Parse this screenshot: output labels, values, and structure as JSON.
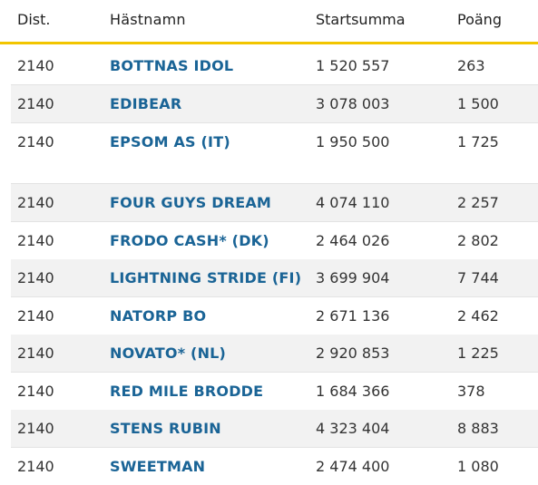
{
  "headers": {
    "dist": "Dist.",
    "name": "Hästnamn",
    "sum": "Startsumma",
    "points": "Poäng"
  },
  "rows": [
    {
      "dist": "2140",
      "name": "BOTTNAS IDOL",
      "sum": "1 520 557",
      "points": "263"
    },
    {
      "dist": "2140",
      "name": "EDIBEAR",
      "sum": "3 078 003",
      "points": "1 500"
    },
    {
      "dist": "2140",
      "name": "EPSOM AS (IT)",
      "sum": "1 950 500",
      "points": "1 725"
    },
    {
      "dist": "2140",
      "name": "FOUR GUYS DREAM",
      "sum": "4 074 110",
      "points": "2 257"
    },
    {
      "dist": "2140",
      "name": "FRODO CASH* (DK)",
      "sum": "2 464 026",
      "points": "2 802"
    },
    {
      "dist": "2140",
      "name": "LIGHTNING STRIDE (FI)",
      "sum": "3 699 904",
      "points": "7 744"
    },
    {
      "dist": "2140",
      "name": "NATORP BO",
      "sum": "2 671 136",
      "points": "2 462"
    },
    {
      "dist": "2140",
      "name": "NOVATO* (NL)",
      "sum": "2 920 853",
      "points": "1 225"
    },
    {
      "dist": "2140",
      "name": "RED MILE BRODDE",
      "sum": "1 684 366",
      "points": "378"
    },
    {
      "dist": "2140",
      "name": "STENS RUBIN",
      "sum": "4 323 404",
      "points": "8 883"
    },
    {
      "dist": "2140",
      "name": "SWEETMAN",
      "sum": "2 474 400",
      "points": "1 080"
    }
  ]
}
